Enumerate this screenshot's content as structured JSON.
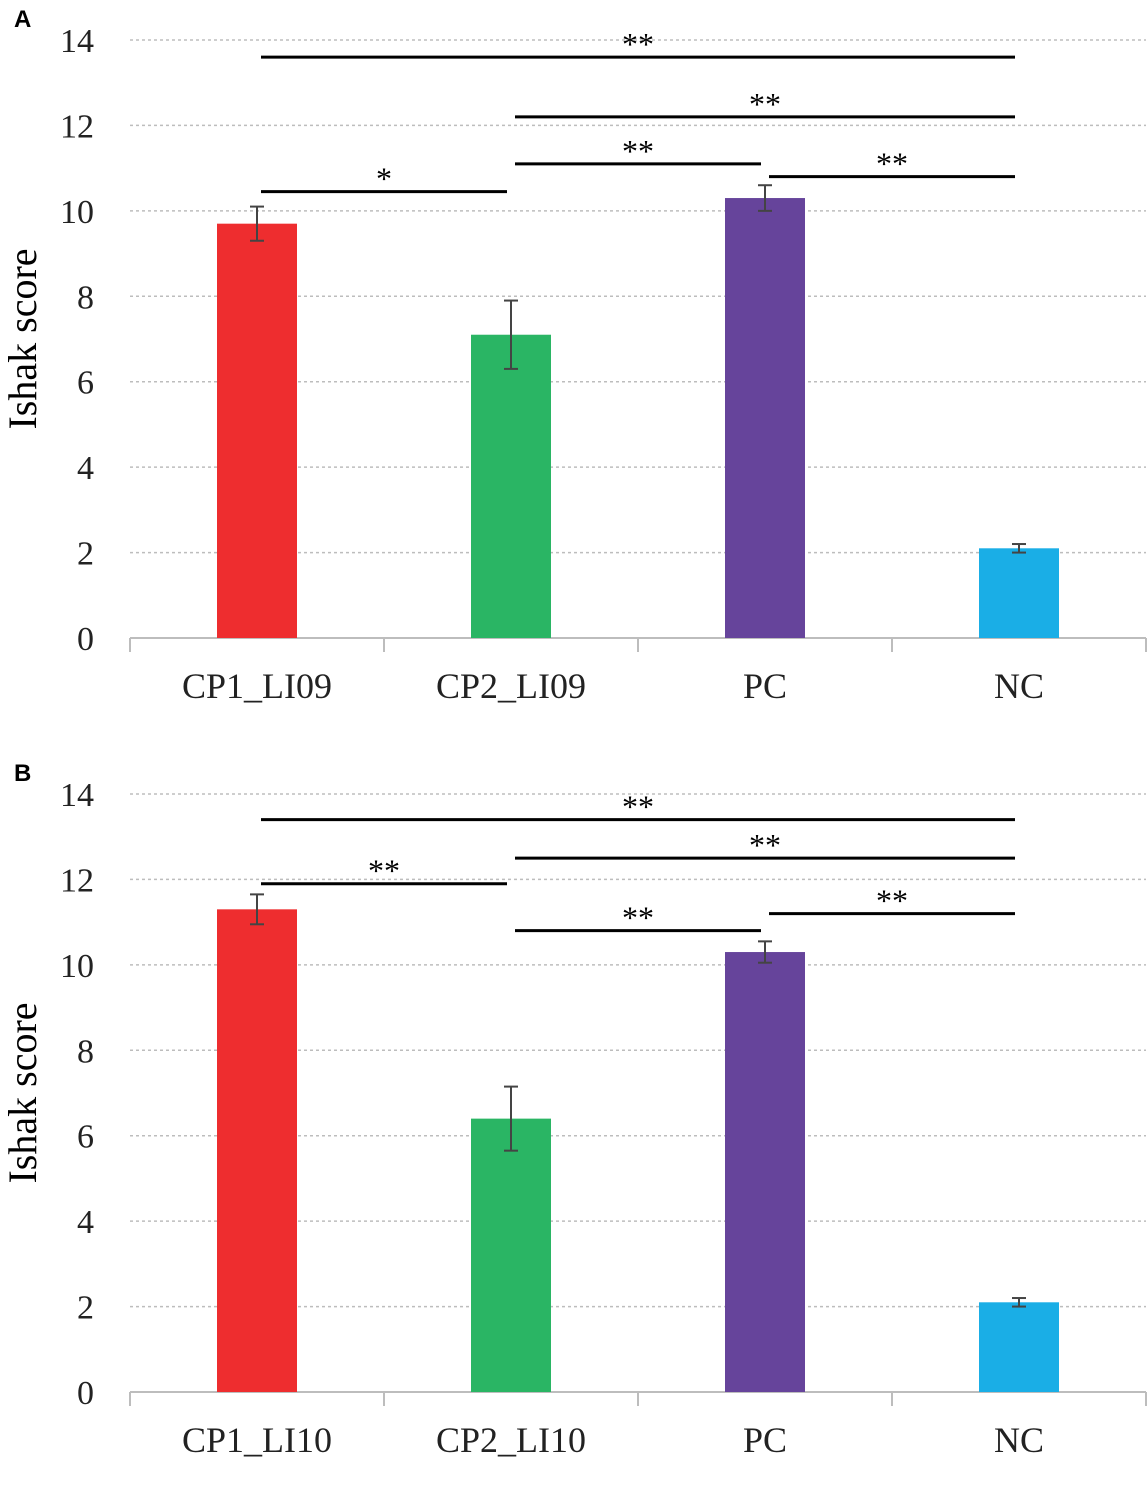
{
  "chart_data": [
    {
      "panel": "A",
      "type": "bar",
      "title": "",
      "xlabel": "",
      "ylabel": "Ishak score",
      "ylim": [
        0,
        14
      ],
      "yticks": [
        "0",
        "2",
        "4",
        "6",
        "8",
        "10",
        "12",
        "14"
      ],
      "categories": [
        "CP1_LI09",
        "CP2_LI09",
        "PC",
        "NC"
      ],
      "values": [
        9.7,
        7.1,
        10.3,
        2.1
      ],
      "errors": [
        0.4,
        0.8,
        0.3,
        0.1
      ],
      "colors": [
        "#ee2d2f",
        "#2ab564",
        "#66449b",
        "#1aaee6"
      ],
      "grid": true,
      "significance": [
        {
          "from": 0,
          "to": 3,
          "label": "**",
          "level": 13.6
        },
        {
          "from": 1,
          "to": 3,
          "label": "**",
          "level": 12.2
        },
        {
          "from": 1,
          "to": 2,
          "label": "**",
          "level": 11.1
        },
        {
          "from": 2,
          "to": 3,
          "label": "**",
          "level": 10.8
        },
        {
          "from": 0,
          "to": 1,
          "label": "*",
          "level": 10.45
        }
      ]
    },
    {
      "panel": "B",
      "type": "bar",
      "title": "",
      "xlabel": "",
      "ylabel": "Ishak score",
      "ylim": [
        0,
        14
      ],
      "yticks": [
        "0",
        "2",
        "4",
        "6",
        "8",
        "10",
        "12",
        "14"
      ],
      "categories": [
        "CP1_LI10",
        "CP2_LI10",
        "PC",
        "NC"
      ],
      "values": [
        11.3,
        6.4,
        10.3,
        2.1
      ],
      "errors": [
        0.35,
        0.75,
        0.25,
        0.1
      ],
      "colors": [
        "#ee2d2f",
        "#2ab564",
        "#66449b",
        "#1aaee6"
      ],
      "grid": true,
      "significance": [
        {
          "from": 0,
          "to": 3,
          "label": "**",
          "level": 13.4
        },
        {
          "from": 1,
          "to": 3,
          "label": "**",
          "level": 12.5
        },
        {
          "from": 0,
          "to": 1,
          "label": "**",
          "level": 11.9
        },
        {
          "from": 2,
          "to": 3,
          "label": "**",
          "level": 11.2
        },
        {
          "from": 1,
          "to": 2,
          "label": "**",
          "level": 10.8
        }
      ]
    }
  ]
}
